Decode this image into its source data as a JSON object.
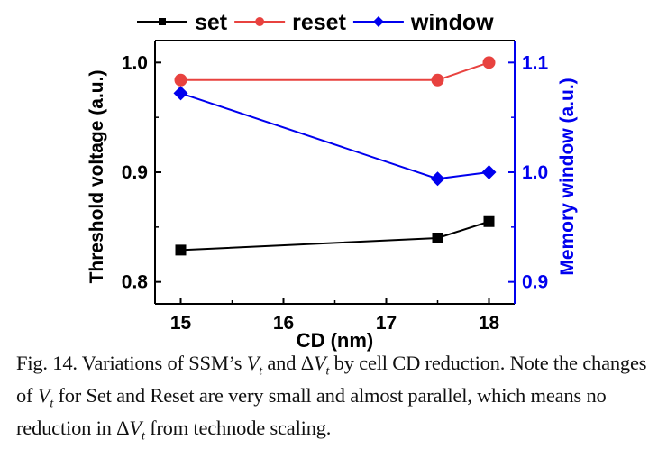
{
  "chart_data": {
    "type": "line",
    "x": [
      15,
      17.5,
      18
    ],
    "xlabel": "CD (nm)",
    "ylabel": "Threshold voltage (a.u.)",
    "y2label": "Memory window (a.u.)",
    "xlim": [
      14.75,
      18.25
    ],
    "ylim": [
      0.78,
      1.02
    ],
    "y2lim": [
      0.88,
      1.12
    ],
    "xticks": [
      15,
      16,
      17,
      18
    ],
    "xtick_labels": [
      "15",
      "16",
      "17",
      "18"
    ],
    "yticks": [
      0.8,
      0.9,
      1.0
    ],
    "ytick_labels": [
      "0.8",
      "0.9",
      "1.0"
    ],
    "y2ticks": [
      0.9,
      1.0,
      1.1
    ],
    "y2tick_labels": [
      "0.9",
      "1.0",
      "1.1"
    ],
    "grid": false,
    "legend_placement": "top",
    "series": [
      {
        "name": "set",
        "axis": "left",
        "color": "#000000",
        "marker": "square",
        "values": [
          0.829,
          0.84,
          0.855
        ]
      },
      {
        "name": "reset",
        "axis": "left",
        "color": "#e8423f",
        "marker": "circle",
        "values": [
          0.984,
          0.984,
          1.0
        ]
      },
      {
        "name": "window",
        "axis": "right",
        "color": "#0000ee",
        "marker": "diamond",
        "values": [
          1.072,
          0.994,
          1.0
        ]
      }
    ]
  },
  "caption": {
    "s1": "Fig. 14. Variations of SSM’s ",
    "v": "V",
    "t": "t",
    "s2": " and Δ",
    "s3": " by cell CD reduction. Note the changes of ",
    "s4": " for Set and Reset are very small and almost parallel, which means no reduction in Δ",
    "s5": " from technode scaling."
  }
}
